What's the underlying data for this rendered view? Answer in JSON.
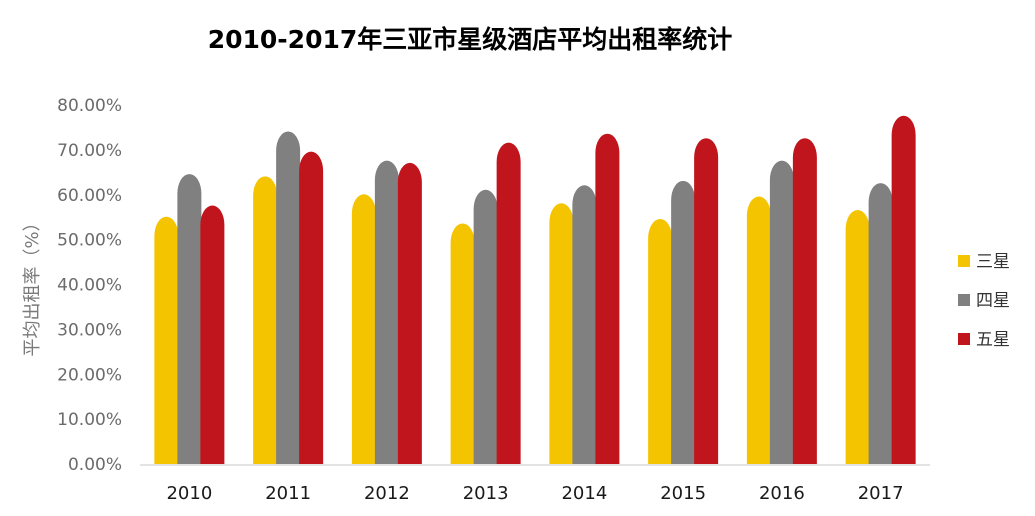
{
  "chart_data": {
    "type": "bar",
    "title": "2010-2017年三亚市星级酒店平均出租率统计",
    "ylabel": "平均出租率（%）",
    "xlabel": "",
    "categories": [
      "2010",
      "2011",
      "2012",
      "2013",
      "2014",
      "2015",
      "2016",
      "2017"
    ],
    "series": [
      {
        "name": "三星",
        "color": "#f5c400",
        "values": [
          53.5,
          62.5,
          58.5,
          52.0,
          56.5,
          53.0,
          58.0,
          55.0
        ]
      },
      {
        "name": "四星",
        "color": "#808080",
        "values": [
          63.0,
          72.5,
          66.0,
          59.5,
          60.5,
          61.5,
          66.0,
          61.0
        ]
      },
      {
        "name": "五星",
        "color": "#c0151d",
        "values": [
          56.0,
          68.0,
          65.5,
          70.0,
          72.0,
          71.0,
          71.0,
          76.0
        ]
      }
    ],
    "ylim": [
      0,
      80
    ],
    "yticks": [
      "0.00%",
      "10.00%",
      "20.00%",
      "30.00%",
      "40.00%",
      "50.00%",
      "60.00%",
      "70.00%",
      "80.00%"
    ],
    "grid": false,
    "legend_position": "right"
  }
}
